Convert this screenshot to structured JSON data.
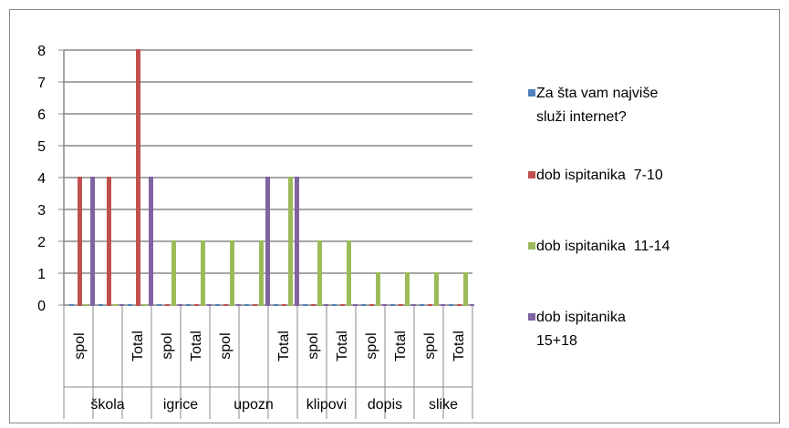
{
  "chart_data": {
    "type": "bar",
    "categories": [
      "spol",
      null,
      "Total",
      "spol",
      "Total",
      "spol",
      null,
      "Total",
      "spol",
      "Total",
      "spol",
      "Total",
      "spol",
      "Total"
    ],
    "groups": [
      {
        "label": "škola",
        "span": 3
      },
      {
        "label": "igrice",
        "span": 2
      },
      {
        "label": "upozn",
        "span": 3
      },
      {
        "label": "klipovi",
        "span": 2
      },
      {
        "label": "dopis",
        "span": 2
      },
      {
        "label": "slike",
        "span": 2
      }
    ],
    "series": [
      {
        "name": "Za šta vam najviše služi internet?",
        "color": "#4f81bd",
        "values": [
          0,
          0,
          0,
          0,
          0,
          0,
          0,
          0,
          0,
          0,
          0,
          0,
          0,
          0
        ]
      },
      {
        "name": "dob ispitanika  7-10",
        "color": "#c0504d",
        "values": [
          4,
          4,
          8,
          0,
          0,
          0,
          0,
          0,
          0,
          0,
          0,
          0,
          0,
          0
        ]
      },
      {
        "name": "dob ispitanika  11-14",
        "color": "#9bbb59",
        "values": [
          0,
          0,
          0,
          2,
          2,
          2,
          2,
          4,
          2,
          2,
          1,
          1,
          1,
          1
        ]
      },
      {
        "name": "dob ispitanika  15+18",
        "color": "#8064a2",
        "values": [
          4,
          0,
          4,
          0,
          0,
          0,
          4,
          4,
          0,
          0,
          0,
          0,
          0,
          0
        ]
      }
    ],
    "ylim": [
      0,
      8
    ],
    "yticks": [
      0,
      1,
      2,
      3,
      4,
      5,
      6,
      7,
      8
    ],
    "grid": true,
    "legend": "right"
  }
}
